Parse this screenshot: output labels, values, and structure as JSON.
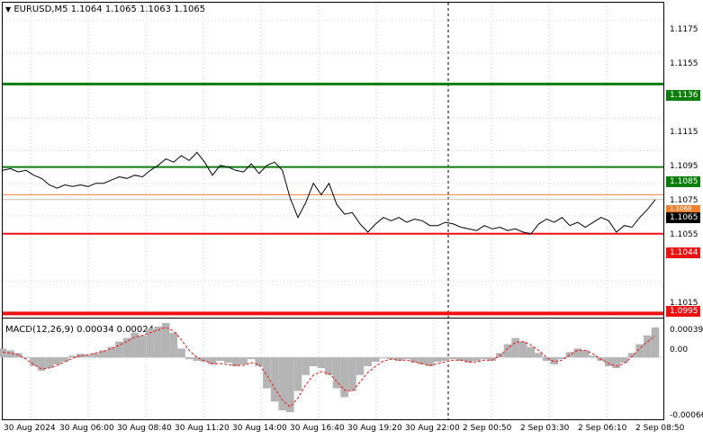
{
  "main_title": "EURUSD,M5  1.1064 1.1065 1.1063 1.1065",
  "macd_title": "MACD(12,26,9) 0.00034 0.00024",
  "price_axis_labels": [
    "1.1175",
    "1.1155",
    "1.1115",
    "1.1095",
    "1.1075",
    "1.1055",
    "1.1015"
  ],
  "levels": [
    {
      "label": "1.1136",
      "value": 1.1136,
      "color": "#0a7d0a",
      "width": 3
    },
    {
      "label": "1.1085",
      "value": 1.1085,
      "color": "#0a7d0a",
      "width": 2
    },
    {
      "label": "1.1068",
      "value": 1.1068,
      "color": "#f08030",
      "width": 1
    },
    {
      "label": "1.1044",
      "value": 1.1044,
      "color": "#ee1111",
      "width": 2
    },
    {
      "label": "1.0995",
      "value": 1.0995,
      "color": "#ee1111",
      "width": 4
    }
  ],
  "current_price_label": "1.1065",
  "macd_axis_labels": [
    "0.00039",
    "0.00",
    "-0.00066"
  ],
  "time_labels": [
    "30 Aug 2024",
    "30 Aug 06:00",
    "30 Aug 08:40",
    "30 Aug 11:20",
    "30 Aug 14:00",
    "30 Aug 16:40",
    "30 Aug 19:20",
    "30 Aug 22:00",
    "2 Sep 00:50",
    "2 Sep 03:30",
    "2 Sep 06:10",
    "2 Sep 08:50"
  ],
  "chart_data": {
    "type": "line",
    "price_range": [
      1.0993,
      1.1186
    ],
    "price": [
      1.1083,
      1.1084,
      1.1082,
      1.1083,
      1.108,
      1.1078,
      1.1074,
      1.1072,
      1.1074,
      1.1073,
      1.1074,
      1.1073,
      1.1075,
      1.1075,
      1.1077,
      1.1079,
      1.1078,
      1.108,
      1.1079,
      1.1083,
      1.1086,
      1.109,
      1.1088,
      1.1092,
      1.1089,
      1.1094,
      1.1088,
      1.108,
      1.1086,
      1.1085,
      1.1083,
      1.1082,
      1.1087,
      1.1081,
      1.1086,
      1.1088,
      1.1083,
      1.1066,
      1.1054,
      1.1063,
      1.1075,
      1.1068,
      1.1075,
      1.1062,
      1.1056,
      1.1057,
      1.105,
      1.1045,
      1.105,
      1.1054,
      1.1052,
      1.1054,
      1.1051,
      1.1053,
      1.1052,
      1.1049,
      1.1049,
      1.1051,
      1.105,
      1.1048,
      1.1047,
      1.1046,
      1.1049,
      1.1047,
      1.1048,
      1.1046,
      1.1047,
      1.1045,
      1.1044,
      1.105,
      1.1053,
      1.1051,
      1.1054,
      1.1049,
      1.1051,
      1.1048,
      1.1051,
      1.1054,
      1.1052,
      1.1045,
      1.1049,
      1.1048,
      1.1054,
      1.1059,
      1.1065
    ],
    "macd_range": [
      -0.0007,
      0.00043
    ],
    "macd_hist": [
      0.0001,
      8e-05,
      5e-05,
      0.0,
      -0.0001,
      -0.00015,
      -0.00012,
      -8e-05,
      -5e-05,
      2e-05,
      4e-05,
      3e-05,
      5e-05,
      8e-05,
      0.00012,
      0.00018,
      0.00022,
      0.00028,
      0.00025,
      0.00032,
      0.00035,
      0.00039,
      0.00028,
      0.0001,
      -2e-05,
      -4e-05,
      -5e-05,
      -8e-05,
      -4e-05,
      -6e-05,
      -0.0001,
      -8e-05,
      -2e-05,
      -0.0001,
      -0.00035,
      -0.0005,
      -0.0006,
      -0.00062,
      -0.00038,
      -0.0002,
      -0.0001,
      -0.00012,
      -0.0002,
      -0.00035,
      -0.00045,
      -0.00038,
      -0.0002,
      -0.0001,
      -5e-05,
      0.0,
      -2e-05,
      -4e-05,
      -2e-05,
      -6e-05,
      -8e-05,
      -0.0001,
      -5e-05,
      -4e-05,
      -2e-05,
      -4e-05,
      -6e-05,
      -4e-05,
      -2e-05,
      -4e-05,
      5e-05,
      0.00015,
      0.00022,
      0.00018,
      0.00012,
      5e-05,
      -4e-05,
      -8e-05,
      -2e-05,
      6e-05,
      0.0001,
      8e-05,
      2e-05,
      -4e-05,
      -0.0001,
      -0.00012,
      -6e-05,
      5e-05,
      0.00015,
      0.00025,
      0.00034
    ],
    "macd_signal": [
      6e-05,
      5e-05,
      3e-05,
      -2e-05,
      -8e-05,
      -0.00013,
      -0.00012,
      -9e-05,
      -5e-05,
      -1e-05,
      2e-05,
      3e-05,
      5e-05,
      7e-05,
      0.0001,
      0.00014,
      0.00018,
      0.00023,
      0.00025,
      0.00028,
      0.00031,
      0.00034,
      0.0003,
      0.0002,
      8e-05,
      0.0,
      -4e-05,
      -7e-05,
      -7e-05,
      -8e-05,
      -9e-05,
      -9e-05,
      -6e-05,
      -8e-05,
      -0.0002,
      -0.00035,
      -0.00048,
      -0.00056,
      -0.00046,
      -0.00031,
      -0.0002,
      -0.00016,
      -0.00018,
      -0.00027,
      -0.00037,
      -0.00038,
      -0.00028,
      -0.00017,
      -0.0001,
      -4e-05,
      -2e-05,
      -3e-05,
      -3e-05,
      -5e-05,
      -7e-05,
      -9e-05,
      -7e-05,
      -5e-05,
      -3e-05,
      -3e-05,
      -5e-05,
      -5e-05,
      -3e-05,
      -3e-05,
      2e-05,
      0.0001,
      0.00017,
      0.00018,
      0.00014,
      8e-05,
      0.0,
      -5e-05,
      -3e-05,
      3e-05,
      8e-05,
      8e-05,
      4e-05,
      -2e-05,
      -7e-05,
      -0.0001,
      -7e-05,
      1e-05,
      0.0001,
      0.00018,
      0.00024
    ]
  }
}
